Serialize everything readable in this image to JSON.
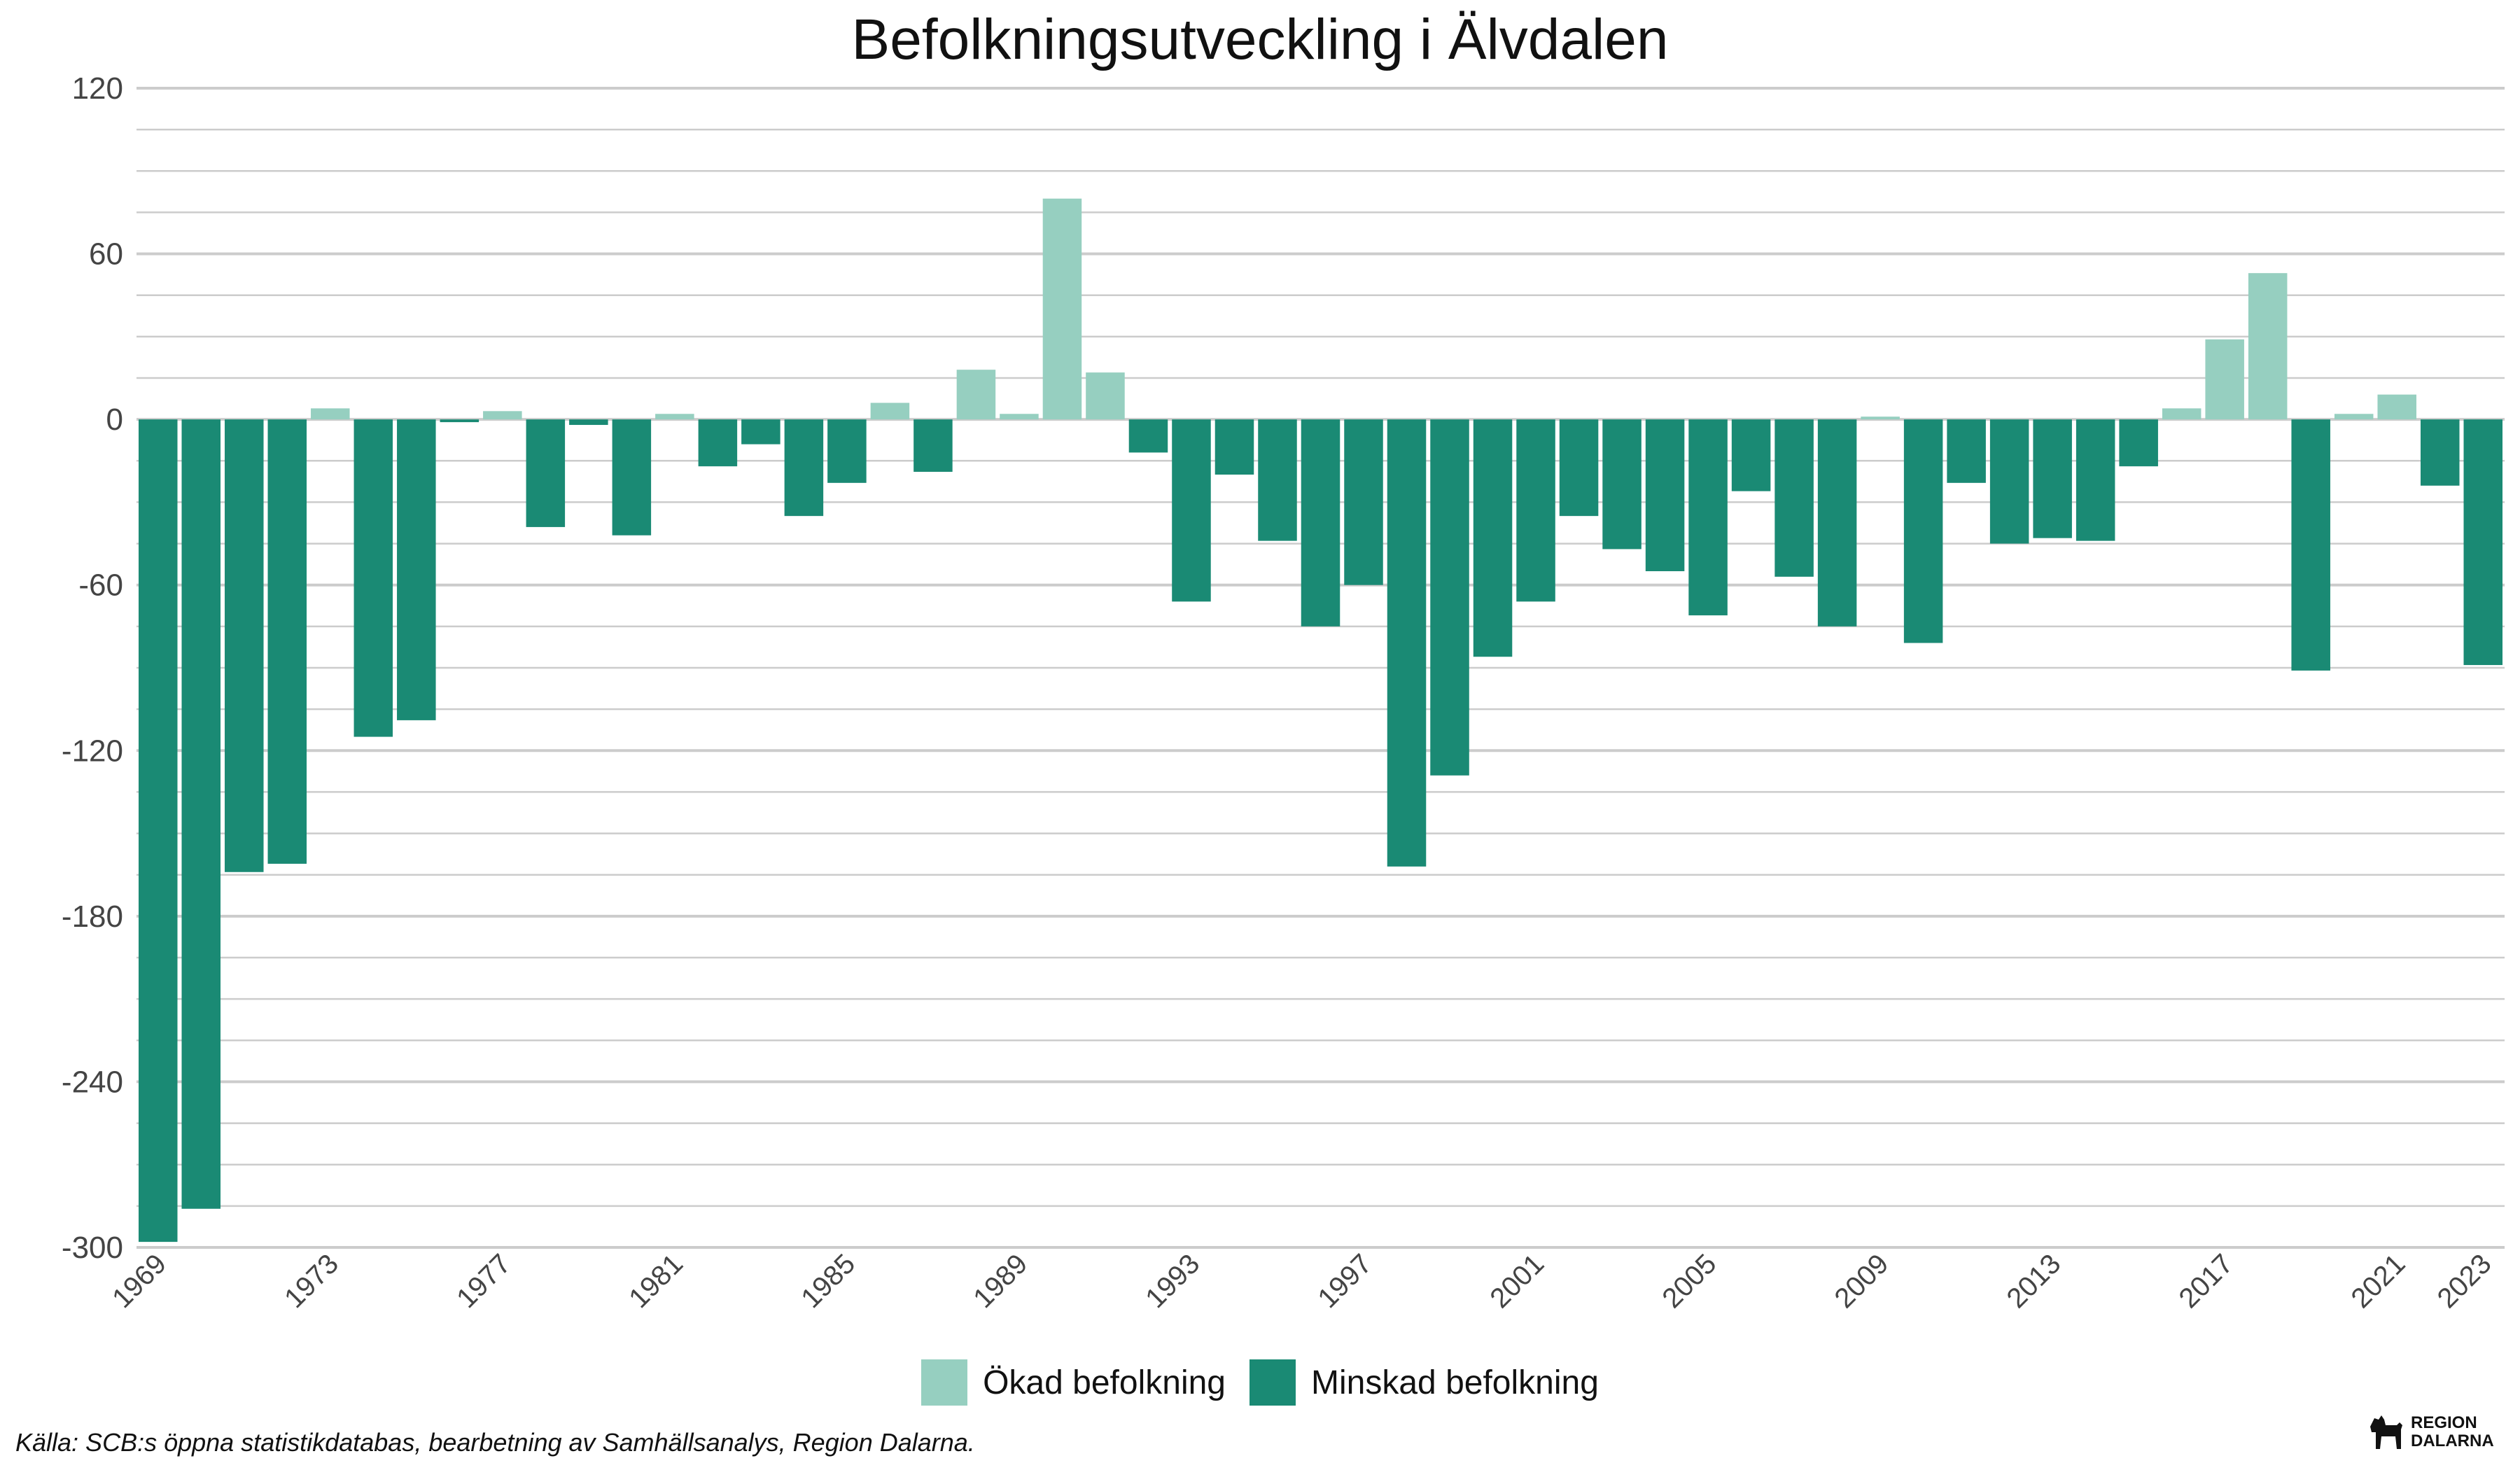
{
  "title": "Befolkningsutveckling i Älvdalen",
  "source": "Källa: SCB:s öppna statistikdatabas, bearbetning av Samhällsanalys, Region Dalarna.",
  "logo": {
    "line1": "REGION",
    "line2": "DALARNA",
    "icon": "dala-horse-icon"
  },
  "colors": {
    "increase": "#96cfc0",
    "decrease": "#1a8a74",
    "grid": "#cccccc"
  },
  "legend": [
    {
      "label": "Ökad befolkning",
      "color": "#96cfc0"
    },
    {
      "label": "Minskad befolkning",
      "color": "#1a8a74"
    }
  ],
  "chart_data": {
    "type": "bar",
    "title": "Befolkningsutveckling i Älvdalen",
    "xlabel": "",
    "ylabel": "",
    "ylim": [
      -300,
      120
    ],
    "yticks": [
      120,
      60,
      0,
      -60,
      -120,
      -180,
      -240,
      -300
    ],
    "xticks": [
      1969,
      1973,
      1977,
      1981,
      1985,
      1989,
      1993,
      1997,
      2001,
      2005,
      2009,
      2013,
      2017,
      2021,
      2023
    ],
    "grid": true,
    "legend_position": "bottom",
    "categories": [
      1969,
      1970,
      1971,
      1972,
      1973,
      1974,
      1975,
      1976,
      1977,
      1978,
      1979,
      1980,
      1981,
      1982,
      1983,
      1984,
      1985,
      1986,
      1987,
      1988,
      1989,
      1990,
      1991,
      1992,
      1993,
      1994,
      1995,
      1996,
      1997,
      1998,
      1999,
      2000,
      2001,
      2002,
      2003,
      2004,
      2005,
      2006,
      2007,
      2008,
      2009,
      2010,
      2011,
      2012,
      2013,
      2014,
      2015,
      2016,
      2017,
      2018,
      2019,
      2020,
      2021,
      2022,
      2023
    ],
    "values": [
      -298,
      -286,
      -164,
      -161,
      4,
      -115,
      -109,
      -1,
      3,
      -39,
      -2,
      -42,
      2,
      -17,
      -9,
      -35,
      -23,
      6,
      -19,
      18,
      2,
      80,
      17,
      -12,
      -66,
      -20,
      -44,
      -75,
      -60,
      -162,
      -129,
      -86,
      -66,
      -35,
      -47,
      -55,
      -71,
      -26,
      -57,
      -75,
      1,
      -81,
      -23,
      -45,
      -43,
      -44,
      -17,
      4,
      29,
      53,
      -91,
      2,
      9,
      -24,
      -89
    ]
  }
}
